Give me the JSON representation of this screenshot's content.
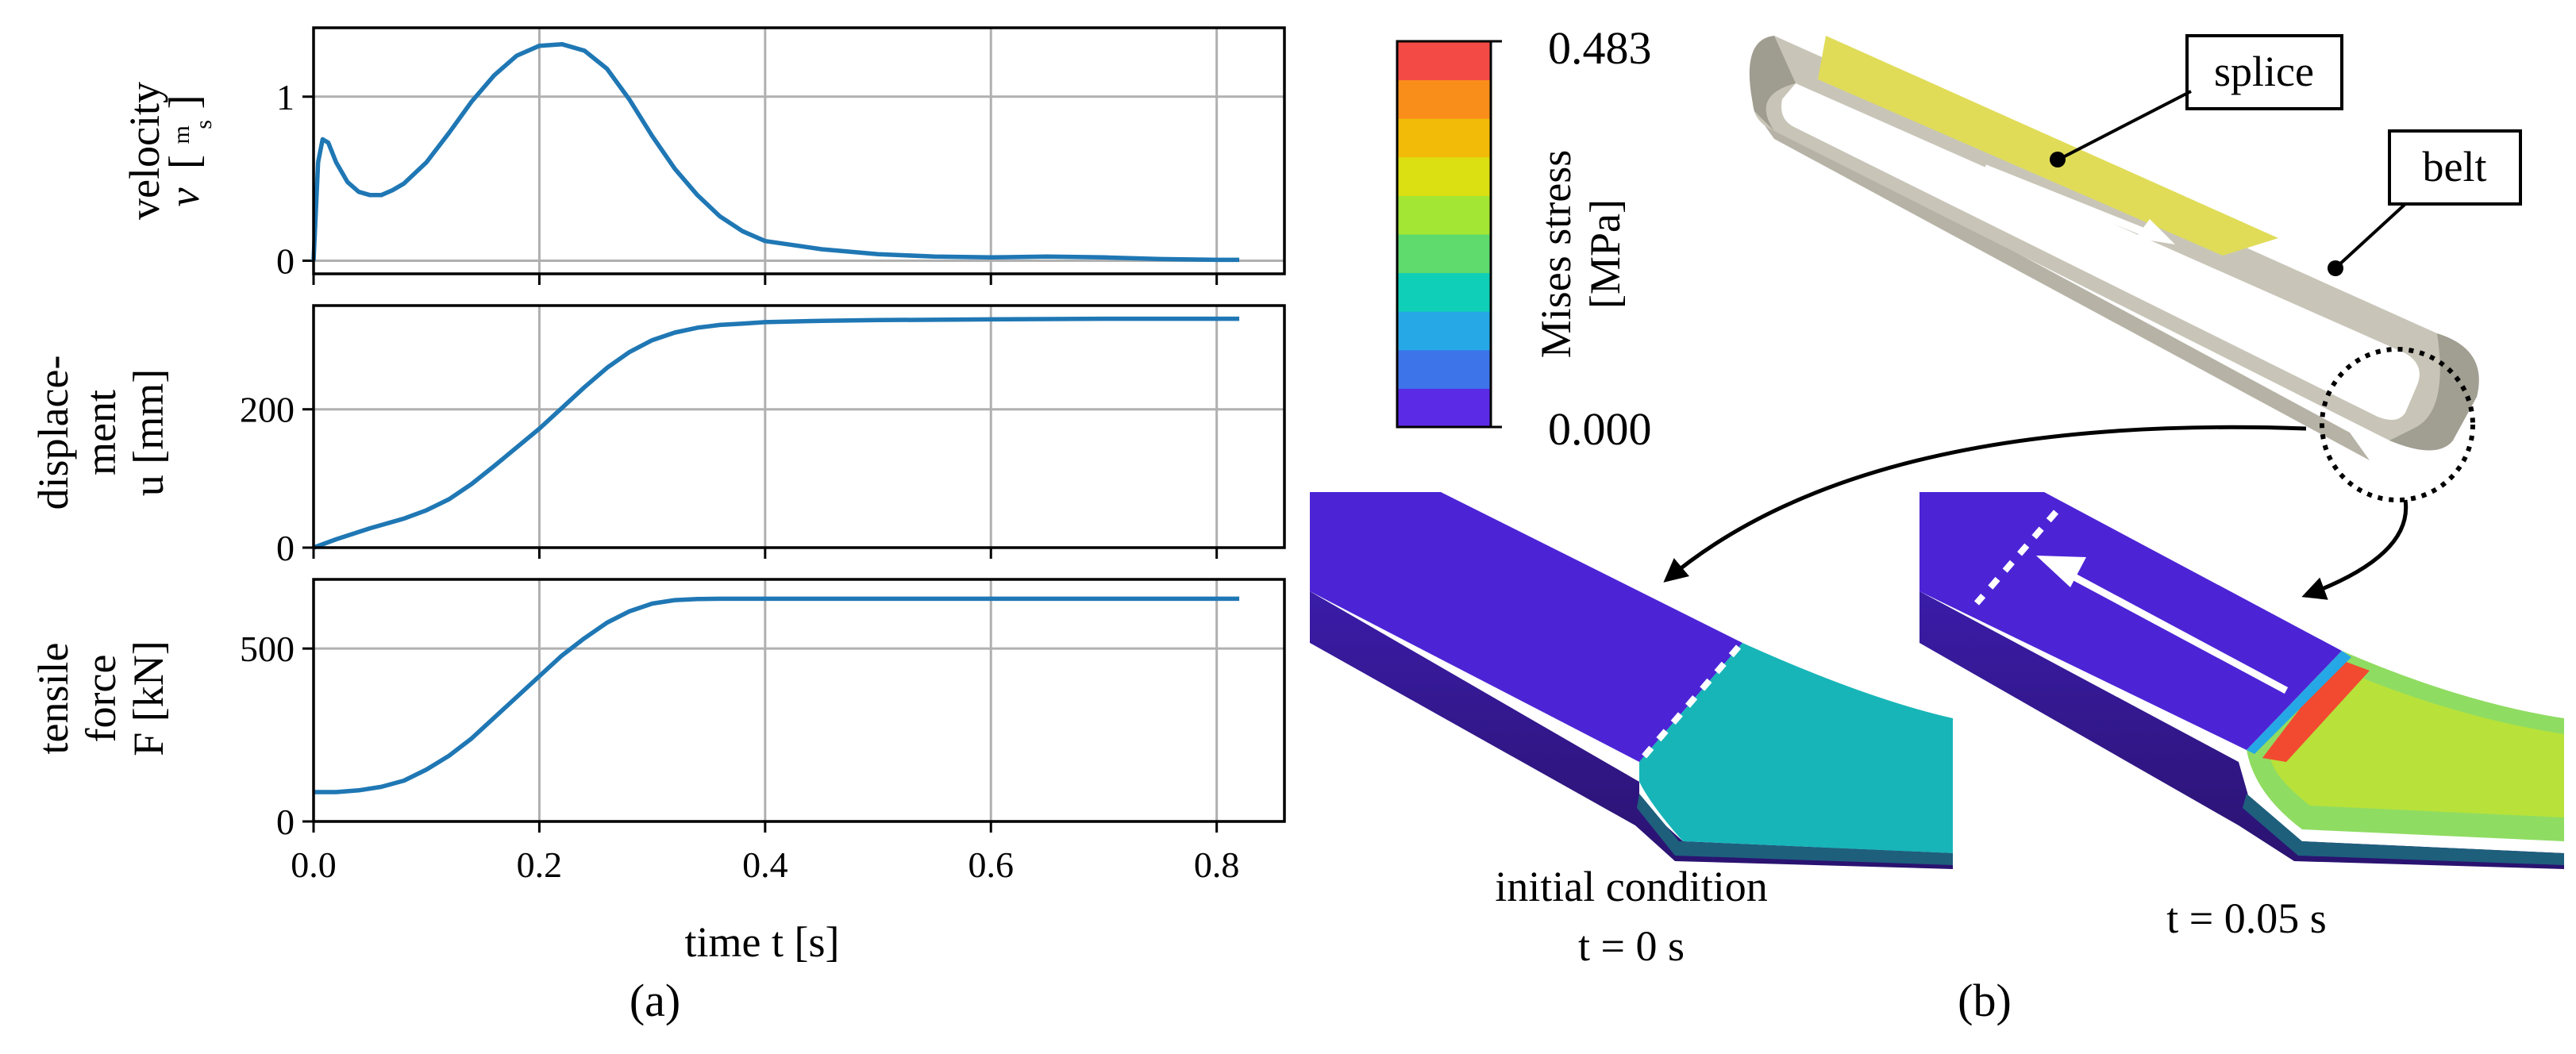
{
  "chart_data": {
    "type": "line",
    "x_label": "time t [s]",
    "x_ticks": [
      0.0,
      0.2,
      0.4,
      0.6,
      0.8
    ],
    "x_tick_labels": [
      "0.0",
      "0.2",
      "0.4",
      "0.6",
      "0.8"
    ],
    "xlim": [
      0.0,
      0.86
    ],
    "grid": true,
    "line_color": "#1f77b4",
    "panels": [
      {
        "key": "velocity",
        "ylabel_line1": "velocity",
        "ylabel_var": "v",
        "ylabel_unit_num": "m",
        "ylabel_unit_den": "s",
        "ylim": [
          -0.08,
          1.42
        ],
        "y_ticks": [
          0,
          1
        ],
        "y_tick_labels": [
          "0",
          "1"
        ],
        "series": {
          "name": "velocity v",
          "x": [
            0,
            0.004,
            0.008,
            0.013,
            0.02,
            0.03,
            0.04,
            0.05,
            0.06,
            0.07,
            0.08,
            0.1,
            0.12,
            0.14,
            0.16,
            0.18,
            0.2,
            0.22,
            0.24,
            0.26,
            0.28,
            0.3,
            0.32,
            0.34,
            0.36,
            0.38,
            0.4,
            0.45,
            0.5,
            0.55,
            0.6,
            0.65,
            0.7,
            0.75,
            0.8,
            0.82
          ],
          "y": [
            0.0,
            0.6,
            0.74,
            0.72,
            0.6,
            0.48,
            0.42,
            0.4,
            0.4,
            0.43,
            0.47,
            0.6,
            0.78,
            0.97,
            1.13,
            1.25,
            1.31,
            1.32,
            1.28,
            1.17,
            0.98,
            0.76,
            0.56,
            0.4,
            0.27,
            0.18,
            0.12,
            0.07,
            0.04,
            0.025,
            0.02,
            0.025,
            0.02,
            0.01,
            0.005,
            0.005
          ]
        }
      },
      {
        "key": "displacement",
        "ylabel_line1": "displace-",
        "ylabel_line2": "ment",
        "ylabel_line3": "u [mm]",
        "ylim": [
          0,
          350
        ],
        "y_ticks": [
          0,
          200
        ],
        "y_tick_labels": [
          "0",
          "200"
        ],
        "series": {
          "name": "displacement u",
          "x": [
            0,
            0.02,
            0.05,
            0.08,
            0.1,
            0.12,
            0.14,
            0.16,
            0.18,
            0.2,
            0.22,
            0.24,
            0.26,
            0.28,
            0.3,
            0.32,
            0.34,
            0.36,
            0.38,
            0.4,
            0.45,
            0.5,
            0.6,
            0.7,
            0.82
          ],
          "y": [
            0,
            12,
            28,
            42,
            54,
            70,
            92,
            118,
            145,
            172,
            202,
            232,
            260,
            283,
            300,
            311,
            318,
            322,
            324,
            326,
            328,
            329,
            330,
            331,
            331
          ]
        }
      },
      {
        "key": "force",
        "ylabel_line1": "tensile",
        "ylabel_line2": "force",
        "ylabel_line3": "F [kN]",
        "ylim": [
          0,
          700
        ],
        "y_ticks": [
          0,
          500
        ],
        "y_tick_labels": [
          "0",
          "500"
        ],
        "series": {
          "name": "tensile force F",
          "x": [
            0,
            0.02,
            0.04,
            0.06,
            0.08,
            0.1,
            0.12,
            0.14,
            0.16,
            0.18,
            0.2,
            0.22,
            0.24,
            0.26,
            0.28,
            0.3,
            0.32,
            0.34,
            0.36,
            0.4,
            0.5,
            0.6,
            0.7,
            0.82
          ],
          "y": [
            85,
            85,
            90,
            100,
            118,
            150,
            190,
            240,
            300,
            360,
            420,
            480,
            530,
            575,
            608,
            630,
            640,
            643,
            644,
            644,
            644,
            644,
            644,
            644
          ]
        }
      }
    ],
    "colorbar": {
      "title_line1": "Mises stress",
      "title_line2": "[MPa]",
      "max_label": "0.483",
      "min_label": "0.000",
      "colors": [
        "#5b2ae6",
        "#3d74ea",
        "#26a7e6",
        "#10cfb8",
        "#5fda6c",
        "#a4e634",
        "#dbe012",
        "#f2bb08",
        "#fa8e1a",
        "#f44a45"
      ]
    }
  },
  "annotations": {
    "splice": "splice",
    "belt": "belt",
    "initial_line1": "initial condition",
    "initial_line2": "t = 0 s",
    "time2": "t = 0.05 s",
    "caption_a": "(a)",
    "caption_b": "(b)"
  },
  "colors": {
    "belt_gray": "#c8c5b8",
    "splice_yellow": "#e0dc58",
    "low_stress": "#4c24d6",
    "mid_stress": "#17b5b8"
  }
}
